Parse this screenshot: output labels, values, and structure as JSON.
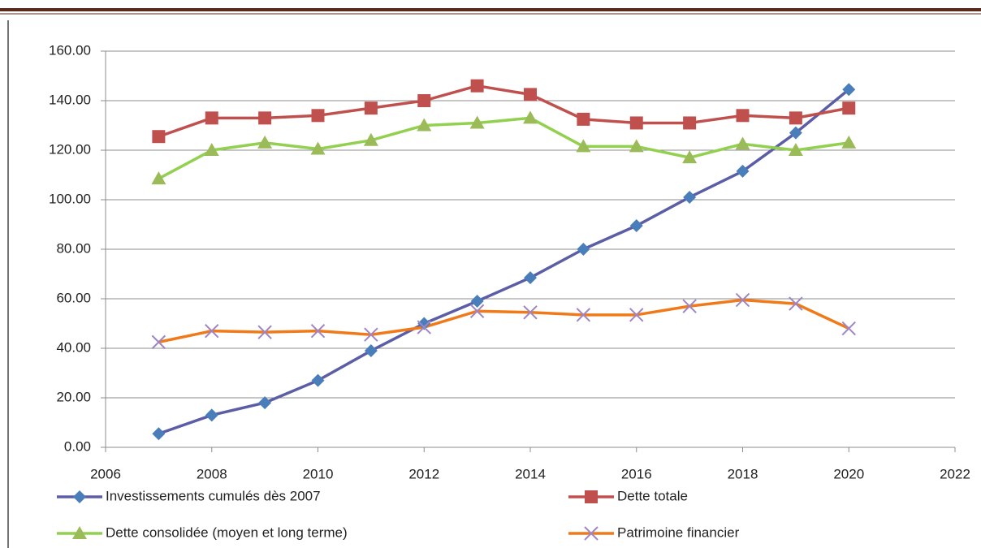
{
  "chart_data": {
    "type": "line",
    "x": [
      2007,
      2008,
      2009,
      2010,
      2011,
      2012,
      2013,
      2014,
      2015,
      2016,
      2017,
      2018,
      2019,
      2020
    ],
    "series": [
      {
        "name": "Investissements cumulés dès 2007",
        "color": "#5b5ea6",
        "marker": "diamond",
        "marker_color": "#4a7ebb",
        "values": [
          5.5,
          13,
          18,
          27,
          39,
          50,
          59,
          68.5,
          80,
          89.5,
          101,
          111.5,
          127,
          144.5
        ]
      },
      {
        "name": "Dette totale",
        "color": "#c0504d",
        "marker": "square",
        "marker_color": "#c0504d",
        "values": [
          125.5,
          133,
          133,
          134,
          137,
          140,
          146,
          142.5,
          132.5,
          131,
          131,
          134,
          133,
          137
        ]
      },
      {
        "name": "Dette consolidée (moyen et long terme)",
        "color": "#92d050",
        "marker": "triangle",
        "marker_color": "#9bbb59",
        "values": [
          108.5,
          120,
          123,
          120.5,
          124,
          130,
          131,
          133,
          121.5,
          121.5,
          117,
          122.5,
          120,
          123
        ]
      },
      {
        "name": "Patrimoine financier",
        "color": "#f07a1a",
        "marker": "x",
        "marker_color": "#9e86c6",
        "values": [
          42.5,
          47,
          46.5,
          47,
          45.5,
          48.5,
          55,
          54.5,
          53.5,
          53.5,
          57,
          59.5,
          58,
          48
        ]
      }
    ],
    "xlim": [
      2006,
      2022
    ],
    "xticks": [
      2006,
      2008,
      2010,
      2012,
      2014,
      2016,
      2018,
      2020,
      2022
    ],
    "ylim": [
      0,
      160
    ],
    "yticks": [
      {
        "value": 0,
        "label": "0.00"
      },
      {
        "value": 20,
        "label": "20.00"
      },
      {
        "value": 40,
        "label": "40.00"
      },
      {
        "value": 60,
        "label": "60.00"
      },
      {
        "value": 80,
        "label": "80.00"
      },
      {
        "value": 100,
        "label": "100.00"
      },
      {
        "value": 120,
        "label": "120.00"
      },
      {
        "value": 140,
        "label": "140.00"
      },
      {
        "value": 160,
        "label": "160.00"
      }
    ],
    "grid": true
  }
}
